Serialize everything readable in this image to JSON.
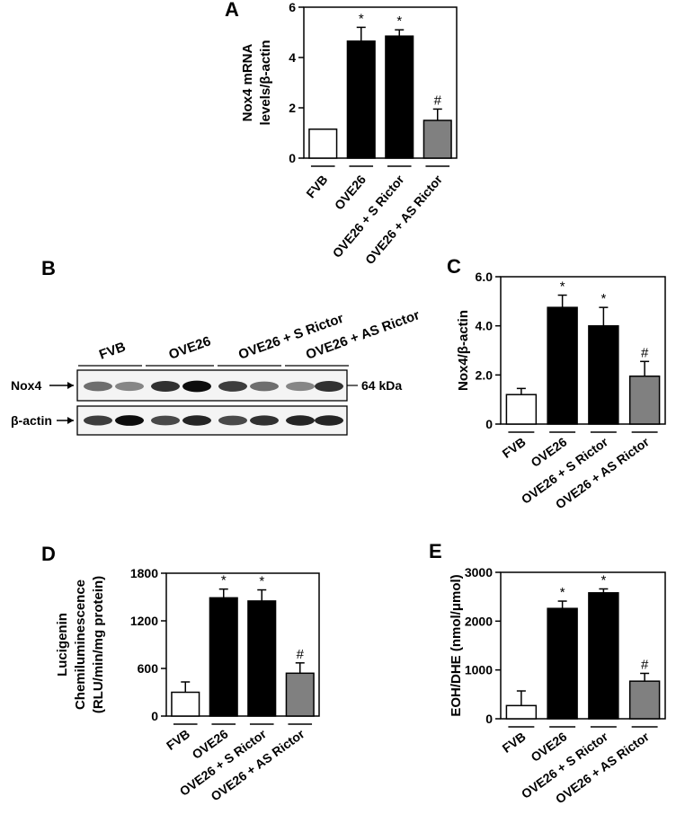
{
  "panels": {
    "A": {
      "letter": "A"
    },
    "B": {
      "letter": "B"
    },
    "C": {
      "letter": "C"
    },
    "D": {
      "letter": "D"
    },
    "E": {
      "letter": "E"
    }
  },
  "blot": {
    "lanes": [
      "FVB",
      "OVE26",
      "OVE26 + S Rictor",
      "OVE26 + AS Rictor"
    ],
    "rows": [
      {
        "label": "Nox4",
        "marker": "64 kDa"
      },
      {
        "label": "β-actin",
        "marker": ""
      }
    ]
  },
  "chart_data": [
    {
      "panel": "A",
      "type": "bar",
      "categories": [
        "FVB",
        "OVE26",
        "OVE26 + S Rictor",
        "OVE26 + AS Rictor"
      ],
      "values": [
        1.15,
        4.65,
        4.85,
        1.5
      ],
      "errors": [
        0,
        0.55,
        0.25,
        0.45
      ],
      "annotations": [
        "",
        "*",
        "*",
        "#"
      ],
      "colors": [
        "#ffffff",
        "#000000",
        "#000000",
        "#808080"
      ],
      "ylabel": "Nox4 mRNA\nlevels/β-actin",
      "ylim": [
        0,
        6
      ],
      "yticks": [
        0,
        2,
        4,
        6
      ],
      "ytick_labels": [
        "0",
        "2",
        "4",
        "6"
      ]
    },
    {
      "panel": "C",
      "type": "bar",
      "categories": [
        "FVB",
        "OVE26",
        "OVE26 + S Rictor",
        "OVE26 + AS Rictor"
      ],
      "values": [
        1.2,
        4.75,
        4.0,
        1.95
      ],
      "errors": [
        0.25,
        0.5,
        0.75,
        0.6
      ],
      "annotations": [
        "",
        "*",
        "*",
        "#"
      ],
      "colors": [
        "#ffffff",
        "#000000",
        "#000000",
        "#808080"
      ],
      "ylabel": "Nox4/β-actin",
      "ylim": [
        0,
        6
      ],
      "yticks": [
        0,
        2,
        4,
        6
      ],
      "ytick_labels": [
        "0",
        "2.0",
        "4.0",
        "6.0"
      ]
    },
    {
      "panel": "D",
      "type": "bar",
      "categories": [
        "FVB",
        "OVE26",
        "OVE26 + S Rictor",
        "OVE26 + AS Rictor"
      ],
      "values": [
        300,
        1490,
        1450,
        540
      ],
      "errors": [
        130,
        110,
        140,
        130
      ],
      "annotations": [
        "",
        "*",
        "*",
        "#"
      ],
      "colors": [
        "#ffffff",
        "#000000",
        "#000000",
        "#808080"
      ],
      "ylabel": "Lucigenin\nChemiluminescence\n(RLU/min/mg protein)",
      "ylim": [
        0,
        1800
      ],
      "yticks": [
        0,
        600,
        1200,
        1800
      ],
      "ytick_labels": [
        "0",
        "600",
        "1200",
        "1800"
      ]
    },
    {
      "panel": "E",
      "type": "bar",
      "categories": [
        "FVB",
        "OVE26",
        "OVE26 + S Rictor",
        "OVE26 + AS Rictor"
      ],
      "values": [
        270,
        2260,
        2580,
        770
      ],
      "errors": [
        300,
        150,
        80,
        160
      ],
      "annotations": [
        "",
        "*",
        "*",
        "#"
      ],
      "colors": [
        "#ffffff",
        "#000000",
        "#000000",
        "#808080"
      ],
      "ylabel": "EOH/DHE (nmol/μmol)",
      "ylim": [
        0,
        3000
      ],
      "yticks": [
        0,
        1000,
        2000,
        3000
      ],
      "ytick_labels": [
        "0",
        "1000",
        "2000",
        "3000"
      ]
    }
  ]
}
